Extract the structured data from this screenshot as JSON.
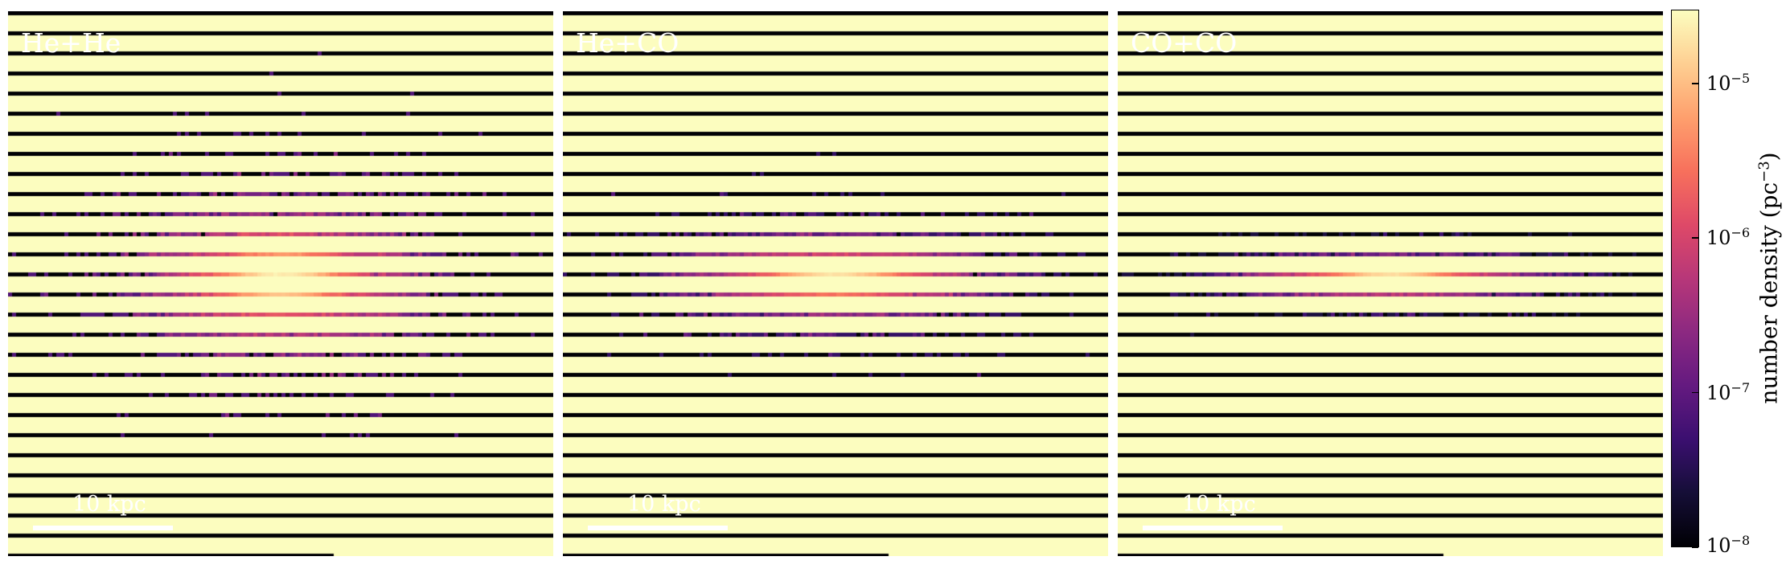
{
  "chart_data": {
    "type": "heatmap",
    "panels": [
      {
        "title": "He+He",
        "scale_bar_label": "10 kpc",
        "scale_bar_length_kpc": 10,
        "center_kpc": [
          0,
          0
        ],
        "scale_length_x_kpc": 3.2,
        "scale_height_y_kpc": 1.6,
        "peak_density": 2.5e-05
      },
      {
        "title": "He+CO",
        "scale_bar_label": "10 kpc",
        "scale_bar_length_kpc": 10,
        "center_kpc": [
          0,
          0
        ],
        "scale_length_x_kpc": 3.5,
        "scale_height_y_kpc": 0.9,
        "peak_density": 2e-05
      },
      {
        "title": "CO+CO",
        "scale_bar_label": "10 kpc",
        "scale_bar_length_kpc": 10,
        "center_kpc": [
          0,
          0
        ],
        "scale_length_x_kpc": 3.2,
        "scale_height_y_kpc": 0.45,
        "peak_density": 1.8e-05
      }
    ],
    "colorbar": {
      "label": "number density",
      "unit_prefix": "(pc",
      "unit_exponent": "−3",
      "unit_suffix": ")",
      "colormap": "magma",
      "scale": "log",
      "range": [
        1e-08,
        3e-05
      ],
      "ticks": [
        {
          "value": 1e-08,
          "base": "10",
          "exp": "−8"
        },
        {
          "value": 1e-07,
          "base": "10",
          "exp": "−7"
        },
        {
          "value": 1e-06,
          "base": "10",
          "exp": "−6"
        },
        {
          "value": 1e-05,
          "base": "10",
          "exp": "−5"
        }
      ]
    },
    "xlabel": "",
    "ylabel": ""
  }
}
